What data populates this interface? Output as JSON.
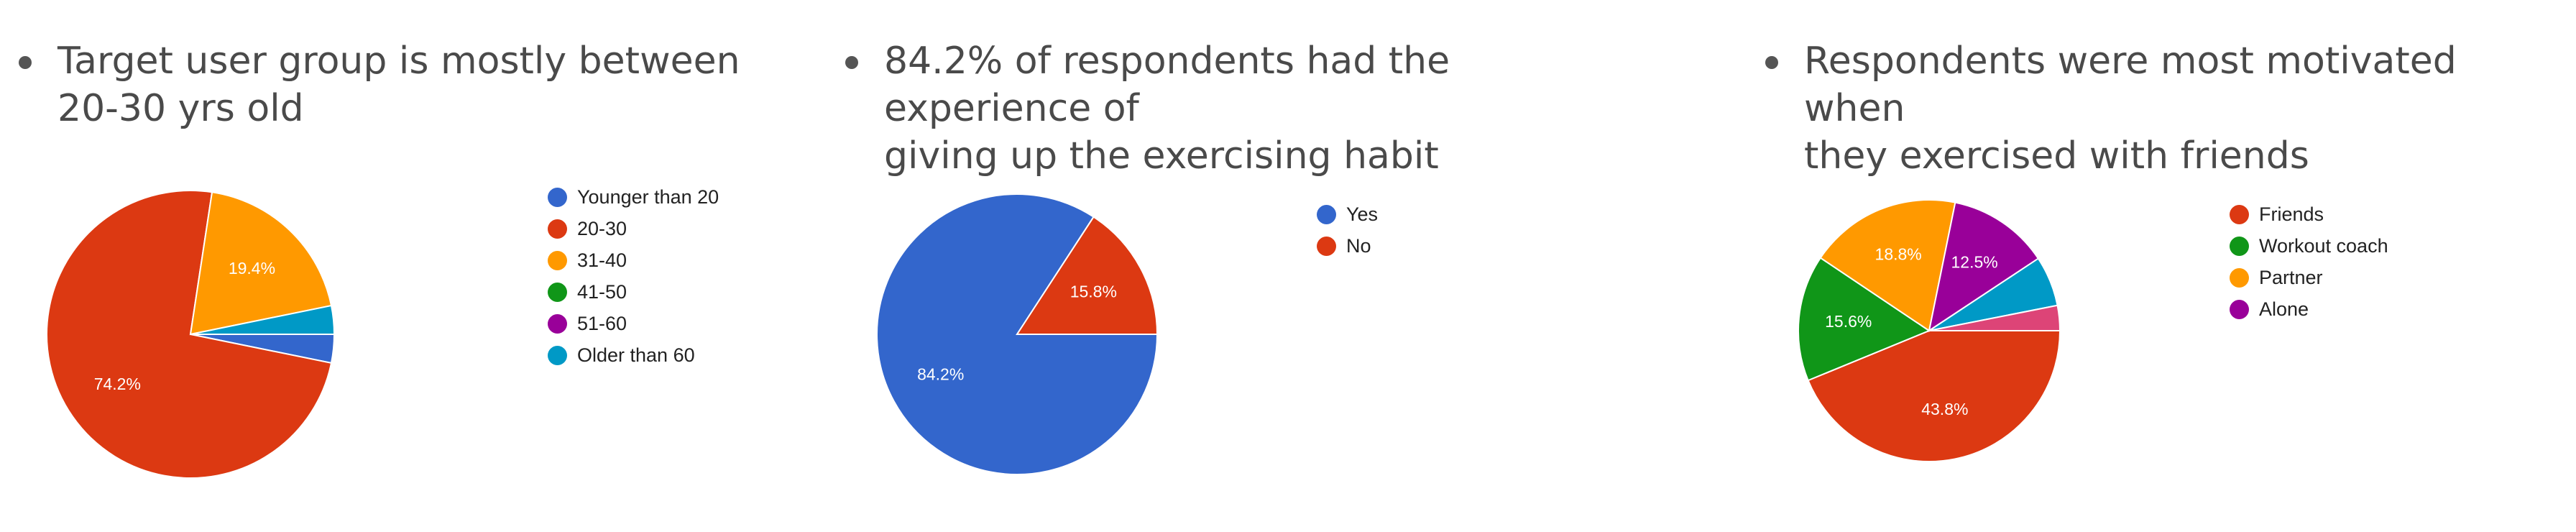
{
  "charts": [
    {
      "heading": "Target user group is mostly between\n20-30 yrs old",
      "chart_data": {
        "type": "pie",
        "categories": [
          "Younger than 20",
          "20-30",
          "31-40",
          "41-50",
          "51-60",
          "Older than 60"
        ],
        "values": [
          3.2,
          74.2,
          19.4,
          0,
          0,
          3.2
        ],
        "labels": [
          "",
          "74.2%",
          "19.4%",
          "",
          "",
          ""
        ],
        "colors": [
          "#3366cc",
          "#dc3912",
          "#ff9900",
          "#109618",
          "#990099",
          "#0099c6"
        ],
        "legend_position": "right"
      }
    },
    {
      "heading": "84.2% of respondents had the experience of\ngiving up the exercising habit",
      "chart_data": {
        "type": "pie",
        "categories": [
          "Yes",
          "No"
        ],
        "values": [
          84.2,
          15.8
        ],
        "labels": [
          "84.2%",
          "15.8%"
        ],
        "colors": [
          "#3366cc",
          "#dc3912"
        ],
        "legend_position": "right"
      }
    },
    {
      "heading": "Respondents were most motivated when\nthey exercised with friends",
      "chart_data": {
        "type": "pie",
        "categories": [
          "Friends",
          "Workout coach",
          "Partner",
          "Alone"
        ],
        "values": [
          43.8,
          15.6,
          18.8,
          12.5
        ],
        "extra_slices": [
          6.2,
          3.1
        ],
        "extra_colors": [
          "#0099c6",
          "#dd4477"
        ],
        "labels": [
          "43.8%",
          "15.6%",
          "18.8%",
          "12.5%"
        ],
        "colors": [
          "#dc3912",
          "#109618",
          "#ff9900",
          "#990099"
        ],
        "legend_position": "right"
      }
    }
  ]
}
